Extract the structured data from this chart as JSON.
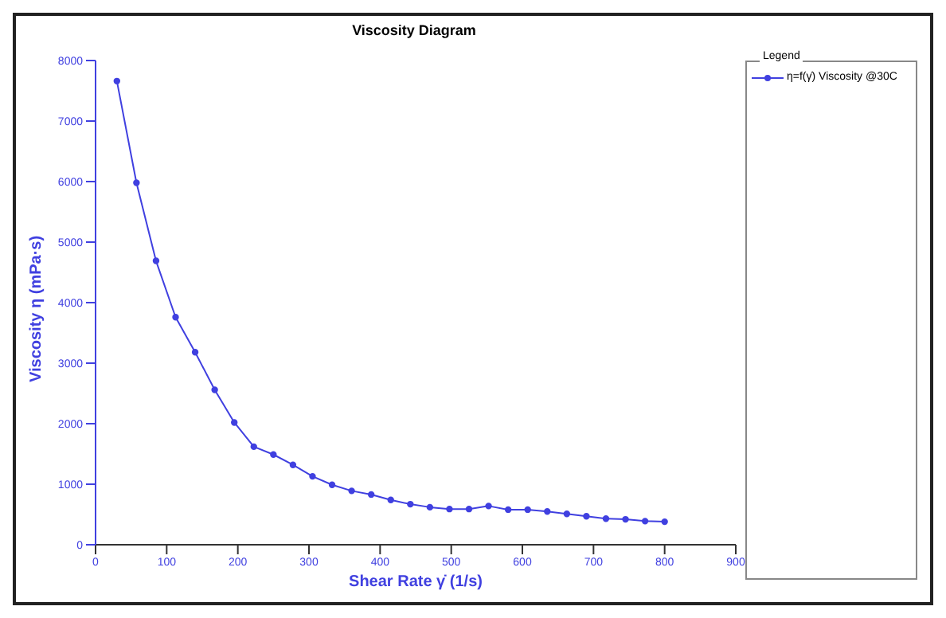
{
  "chart_data": {
    "type": "line",
    "title": "Viscosity Diagram",
    "xlabel": "Shear Rate γ̇ (1/s)",
    "ylabel": "Viscosity η (mPa·s)",
    "legend_title": "Legend",
    "x": [
      30,
      57.5,
      85,
      112.5,
      140,
      167.5,
      195,
      222.5,
      250,
      277.5,
      305,
      332.5,
      360,
      387.5,
      415,
      442.5,
      470,
      497.5,
      525,
      552.5,
      580,
      607.5,
      635,
      662.5,
      690,
      717.5,
      745,
      772.5,
      800
    ],
    "series": [
      {
        "name": "η=f(γ̇) Viscosity @30C",
        "color": "#4040e0",
        "values": [
          7660,
          5980,
          4690,
          3760,
          3180,
          2560,
          2020,
          1620,
          1490,
          1320,
          1130,
          990,
          890,
          830,
          740,
          670,
          620,
          590,
          590,
          640,
          580,
          580,
          550,
          510,
          470,
          430,
          420,
          390,
          380
        ]
      }
    ],
    "xlim": [
      0,
      900
    ],
    "xticks": [
      0,
      100,
      200,
      300,
      400,
      500,
      600,
      700,
      800,
      900
    ],
    "ylim": [
      0,
      8000
    ],
    "yticks": [
      0,
      1000,
      2000,
      3000,
      4000,
      5000,
      6000,
      7000,
      8000
    ],
    "grid": false,
    "legend": "top right",
    "marker": "circle",
    "line_style": "solid"
  }
}
